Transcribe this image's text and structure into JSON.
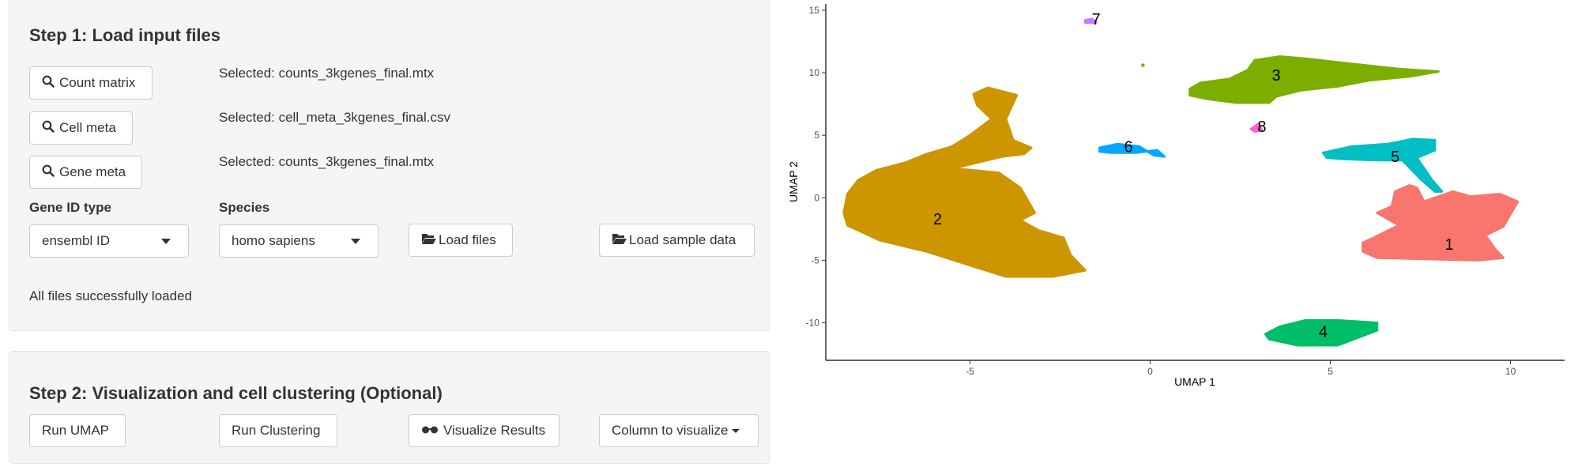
{
  "step1": {
    "title": "Step 1: Load input files",
    "count_matrix_label": "Count matrix",
    "cell_meta_label": "Cell meta",
    "gene_meta_label": "Gene meta",
    "count_matrix_selected": "Selected: counts_3kgenes_final.mtx",
    "cell_meta_selected": "Selected: cell_meta_3kgenes_final.csv",
    "gene_meta_selected": "Selected: counts_3kgenes_final.mtx",
    "gene_id_type_label": "Gene ID type",
    "gene_id_type_value": "ensembl ID",
    "species_label": "Species",
    "species_value": "homo sapiens",
    "load_files_label": "Load files",
    "load_sample_label": "Load sample data",
    "status": "All files successfully loaded"
  },
  "step2": {
    "title": "Step 2: Visualization and cell clustering (Optional)",
    "run_umap_label": "Run UMAP",
    "run_clustering_label": "Run Clustering",
    "visualize_label": "Visualize Results",
    "column_label": "Column to visualize"
  },
  "chart_data": {
    "type": "scatter",
    "xlabel": "UMAP 1",
    "ylabel": "UMAP 2",
    "xlim": [
      -9,
      11.5
    ],
    "ylim": [
      -13,
      15.5
    ],
    "xticks": [
      -5,
      0,
      5,
      10
    ],
    "yticks": [
      -10,
      -5,
      0,
      5,
      10,
      15
    ],
    "grid": false,
    "clusters": [
      {
        "label": "1",
        "color": "#F8766D",
        "center": [
          8.3,
          -3.7
        ]
      },
      {
        "label": "2",
        "color": "#CD9600",
        "center": [
          -5.9,
          -1.7
        ]
      },
      {
        "label": "3",
        "color": "#7CAE00",
        "center": [
          3.5,
          9.8
        ]
      },
      {
        "label": "4",
        "color": "#00BE67",
        "center": [
          4.8,
          -10.7
        ]
      },
      {
        "label": "5",
        "color": "#00BFC4",
        "center": [
          6.8,
          3.3
        ]
      },
      {
        "label": "6",
        "color": "#00A9FF",
        "center": [
          -0.6,
          4.1
        ]
      },
      {
        "label": "7",
        "color": "#C77CFF",
        "center": [
          -1.5,
          14.3
        ]
      },
      {
        "label": "8",
        "color": "#FF61CC",
        "center": [
          3.1,
          5.7
        ]
      }
    ]
  }
}
